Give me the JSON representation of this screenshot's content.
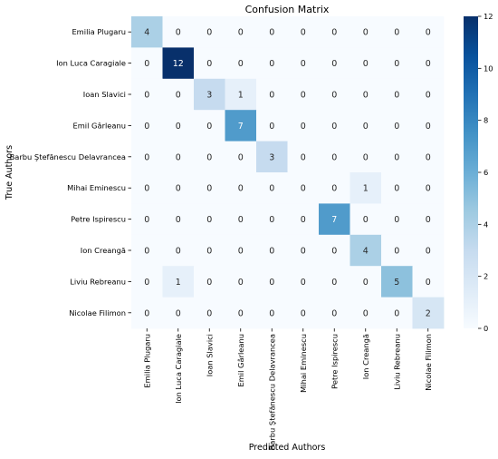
{
  "chart_data": {
    "type": "heatmap",
    "title": "Confusion Matrix",
    "xlabel": "Predicted Authors",
    "ylabel": "True Authors",
    "x_categories": [
      "Emilia Plugaru",
      "Ion Luca Caragiale",
      "Ioan Slavici",
      "Emil Gârleanu",
      "Barbu Ştefănescu Delavrancea",
      "Mihai Eminescu",
      "Petre Ispirescu",
      "Ion Creangă",
      "Liviu Rebreanu",
      "Nicolae Filimon"
    ],
    "y_categories": [
      "Emilia Plugaru",
      "Ion Luca Caragiale",
      "Ioan Slavici",
      "Emil Gârleanu",
      "Barbu Ştefănescu Delavrancea",
      "Mihai Eminescu",
      "Petre Ispirescu",
      "Ion Creangă",
      "Liviu Rebreanu",
      "Nicolae Filimon"
    ],
    "values": [
      [
        4,
        0,
        0,
        0,
        0,
        0,
        0,
        0,
        0,
        0
      ],
      [
        0,
        12,
        0,
        0,
        0,
        0,
        0,
        0,
        0,
        0
      ],
      [
        0,
        0,
        3,
        1,
        0,
        0,
        0,
        0,
        0,
        0
      ],
      [
        0,
        0,
        0,
        7,
        0,
        0,
        0,
        0,
        0,
        0
      ],
      [
        0,
        0,
        0,
        0,
        3,
        0,
        0,
        0,
        0,
        0
      ],
      [
        0,
        0,
        0,
        0,
        0,
        0,
        0,
        1,
        0,
        0
      ],
      [
        0,
        0,
        0,
        0,
        0,
        0,
        7,
        0,
        0,
        0
      ],
      [
        0,
        0,
        0,
        0,
        0,
        0,
        0,
        4,
        0,
        0
      ],
      [
        0,
        1,
        0,
        0,
        0,
        0,
        0,
        0,
        5,
        0
      ],
      [
        0,
        0,
        0,
        0,
        0,
        0,
        0,
        0,
        0,
        2
      ]
    ],
    "colorbar": {
      "range": [
        0,
        12
      ],
      "ticks": [
        0,
        2,
        4,
        6,
        8,
        10,
        12
      ],
      "colormap": "Blues",
      "low_color": "#f7fbff",
      "high_color": "#08306b"
    }
  }
}
